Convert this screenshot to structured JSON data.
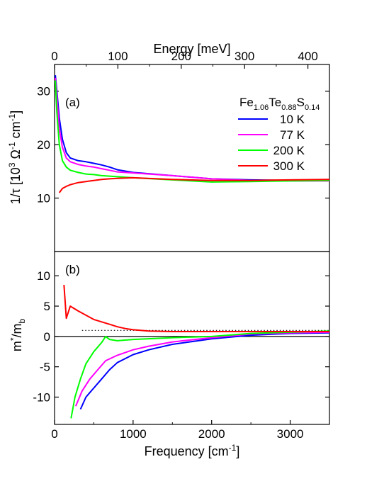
{
  "chart_data": {
    "type": "line",
    "compound_label": {
      "base": [
        "Fe",
        "Te",
        "S"
      ],
      "subs": [
        "1.06",
        "0.88",
        "0.14"
      ]
    },
    "x_axis": {
      "label": "Frequency [cm",
      "label_sup": "-1",
      "label_end": "]",
      "range": [
        0,
        3500
      ],
      "ticks": [
        0,
        1000,
        2000,
        3000
      ]
    },
    "x2_axis": {
      "label": "Energy [meV]",
      "range_mev": [
        0,
        434
      ],
      "ticks": [
        0,
        100,
        200,
        300,
        400
      ]
    },
    "panels": [
      {
        "tag": "(a)",
        "y_label": {
          "a": "1/τ [10",
          "sup1": "3",
          "b": " Ω",
          "sup2": "-1",
          "c": " cm",
          "sup3": "-1",
          "d": "]"
        },
        "y_range": [
          0,
          35
        ],
        "y_ticks": [
          10,
          20,
          30
        ],
        "series": [
          {
            "name": "10 K",
            "color": "#0000ff",
            "points": [
              [
                10,
                33
              ],
              [
                30,
                30
              ],
              [
                60,
                25
              ],
              [
                100,
                21
              ],
              [
                150,
                18.5
              ],
              [
                200,
                17.5
              ],
              [
                300,
                17
              ],
              [
                400,
                16.8
              ],
              [
                500,
                16.5
              ],
              [
                600,
                16.2
              ],
              [
                700,
                15.8
              ],
              [
                800,
                15.3
              ],
              [
                1000,
                14.8
              ],
              [
                1500,
                14.2
              ],
              [
                2000,
                13.6
              ],
              [
                2500,
                13.4
              ],
              [
                3000,
                13.3
              ],
              [
                3500,
                13.3
              ]
            ]
          },
          {
            "name": "77 K",
            "color": "#ff00ff",
            "points": [
              [
                10,
                32.5
              ],
              [
                30,
                29
              ],
              [
                60,
                23
              ],
              [
                100,
                19.5
              ],
              [
                150,
                17.5
              ],
              [
                200,
                16.8
              ],
              [
                300,
                16.3
              ],
              [
                400,
                16
              ],
              [
                500,
                15.8
              ],
              [
                600,
                15.5
              ],
              [
                700,
                15.2
              ],
              [
                800,
                14.9
              ],
              [
                1000,
                14.7
              ],
              [
                1500,
                14.2
              ],
              [
                2000,
                13.6
              ],
              [
                2500,
                13.3
              ],
              [
                3000,
                13.2
              ],
              [
                3500,
                13.2
              ]
            ]
          },
          {
            "name": "200 K",
            "color": "#00ff00",
            "points": [
              [
                10,
                32
              ],
              [
                30,
                26
              ],
              [
                60,
                20
              ],
              [
                100,
                17
              ],
              [
                150,
                15.8
              ],
              [
                200,
                15.2
              ],
              [
                300,
                14.8
              ],
              [
                400,
                14.5
              ],
              [
                500,
                14.4
              ],
              [
                600,
                14.2
              ],
              [
                700,
                14.1
              ],
              [
                800,
                14
              ],
              [
                1000,
                13.8
              ],
              [
                1500,
                13.4
              ],
              [
                2000,
                13
              ],
              [
                2500,
                13.1
              ],
              [
                3000,
                13.2
              ],
              [
                3500,
                13.3
              ]
            ]
          },
          {
            "name": "300 K",
            "color": "#ff0000",
            "points": [
              [
                60,
                11
              ],
              [
                100,
                11.8
              ],
              [
                150,
                12.2
              ],
              [
                200,
                12.5
              ],
              [
                300,
                12.9
              ],
              [
                400,
                13.1
              ],
              [
                500,
                13.3
              ],
              [
                600,
                13.5
              ],
              [
                700,
                13.6
              ],
              [
                800,
                13.7
              ],
              [
                1000,
                13.8
              ],
              [
                1500,
                13.5
              ],
              [
                2000,
                13.3
              ],
              [
                2500,
                13.3
              ],
              [
                3000,
                13.4
              ],
              [
                3500,
                13.5
              ]
            ]
          }
        ]
      },
      {
        "tag": "(b)",
        "y_label": {
          "a": "m",
          "sup": "*",
          "b": "/m",
          "sub": "b"
        },
        "y_range": [
          -14.5,
          14
        ],
        "y_ticks": [
          -10,
          -5,
          0,
          5,
          10
        ],
        "zero_line": 0,
        "dotted_line": 1,
        "series": [
          {
            "name": "10 K",
            "color": "#0000ff",
            "points": [
              [
                330,
                -12
              ],
              [
                400,
                -10
              ],
              [
                500,
                -8.5
              ],
              [
                600,
                -7
              ],
              [
                700,
                -5.5
              ],
              [
                800,
                -4.3
              ],
              [
                1000,
                -3
              ],
              [
                1200,
                -2.2
              ],
              [
                1500,
                -1.3
              ],
              [
                2000,
                -0.4
              ],
              [
                2500,
                0.2
              ],
              [
                3000,
                0.5
              ],
              [
                3500,
                0.6
              ]
            ]
          },
          {
            "name": "77 K",
            "color": "#ff00ff",
            "points": [
              [
                270,
                -11.5
              ],
              [
                350,
                -9
              ],
              [
                450,
                -7
              ],
              [
                550,
                -5.5
              ],
              [
                650,
                -4
              ],
              [
                800,
                -3.1
              ],
              [
                1000,
                -2.2
              ],
              [
                1200,
                -1.6
              ],
              [
                1500,
                -0.9
              ],
              [
                2000,
                -0.2
              ],
              [
                2500,
                0.4
              ],
              [
                3000,
                0.6
              ],
              [
                3500,
                0.7
              ]
            ]
          },
          {
            "name": "200 K",
            "color": "#00ff00",
            "points": [
              [
                210,
                -13.5
              ],
              [
                260,
                -10
              ],
              [
                330,
                -7
              ],
              [
                400,
                -4.5
              ],
              [
                500,
                -2.5
              ],
              [
                600,
                -1
              ],
              [
                650,
                0
              ],
              [
                700,
                -0.5
              ],
              [
                800,
                -0.7
              ],
              [
                1000,
                -0.5
              ],
              [
                1500,
                -0.2
              ],
              [
                2000,
                0
              ],
              [
                2500,
                0.5
              ],
              [
                3000,
                0.7
              ],
              [
                3500,
                0.9
              ]
            ]
          },
          {
            "name": "300 K",
            "color": "#ff0000",
            "points": [
              [
                120,
                8.5
              ],
              [
                150,
                3
              ],
              [
                200,
                5
              ],
              [
                300,
                4.2
              ],
              [
                400,
                3.5
              ],
              [
                500,
                2.8
              ],
              [
                600,
                2.4
              ],
              [
                700,
                2
              ],
              [
                800,
                1.6
              ],
              [
                900,
                1.3
              ],
              [
                1000,
                1.1
              ],
              [
                1200,
                0.9
              ],
              [
                1500,
                0.8
              ],
              [
                2000,
                0.8
              ],
              [
                2500,
                0.8
              ],
              [
                3000,
                0.8
              ],
              [
                3500,
                0.8
              ]
            ]
          }
        ]
      }
    ]
  }
}
